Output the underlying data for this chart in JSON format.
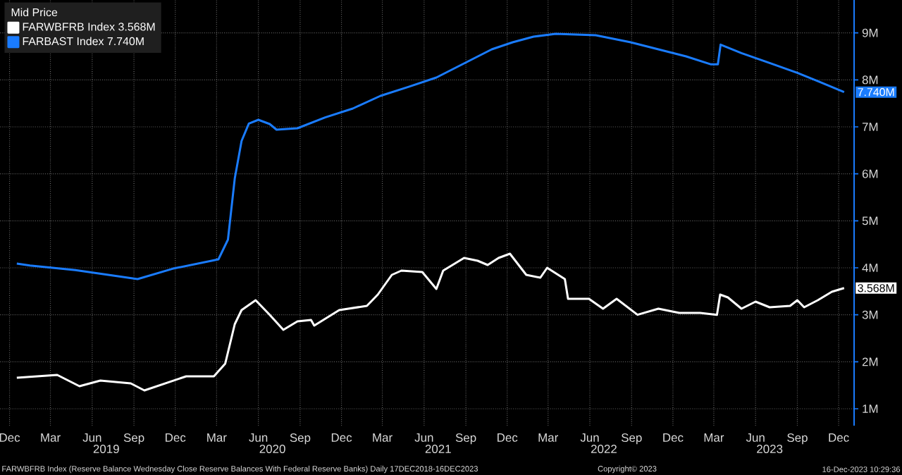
{
  "chart_data": {
    "type": "line",
    "legend_title": "Mid Price",
    "legend": "top left",
    "grid": true,
    "marker": "none",
    "line_style": "solid",
    "xlim": [
      "2018-11-10",
      "2024-01-04"
    ],
    "x2lim": [
      "2018-11-10",
      "2024-01-04"
    ],
    "x2ticks": [
      {
        "value": "2019-07-02",
        "label": "2019"
      },
      {
        "value": "2020-07-02",
        "label": "2020"
      },
      {
        "value": "2021-07-02",
        "label": "2021"
      },
      {
        "value": "2022-07-02",
        "label": "2022"
      },
      {
        "value": "2023-07-02",
        "label": "2023"
      }
    ],
    "ylim": [
      0.64,
      9.7
    ],
    "yticks": [
      {
        "value": 1,
        "label": "1M"
      },
      {
        "value": 2,
        "label": "2M"
      },
      {
        "value": 3,
        "label": "3M"
      },
      {
        "value": 4,
        "label": "4M"
      },
      {
        "value": 5,
        "label": "5M"
      },
      {
        "value": 6,
        "label": "6M"
      },
      {
        "value": 7,
        "label": "7M"
      },
      {
        "value": 8,
        "label": "8M"
      },
      {
        "value": 9,
        "label": "9M"
      }
    ],
    "xticks": [
      {
        "value": "2018-12-01",
        "label": "Dec"
      },
      {
        "value": "2019-03-01",
        "label": "Mar"
      },
      {
        "value": "2019-06-01",
        "label": "Jun"
      },
      {
        "value": "2019-09-01",
        "label": "Sep"
      },
      {
        "value": "2019-12-01",
        "label": "Dec"
      },
      {
        "value": "2020-03-01",
        "label": "Mar"
      },
      {
        "value": "2020-06-01",
        "label": "Jun"
      },
      {
        "value": "2020-09-01",
        "label": "Sep"
      },
      {
        "value": "2020-12-01",
        "label": "Dec"
      },
      {
        "value": "2021-03-01",
        "label": "Mar"
      },
      {
        "value": "2021-06-01",
        "label": "Jun"
      },
      {
        "value": "2021-09-01",
        "label": "Sep"
      },
      {
        "value": "2021-12-01",
        "label": "Dec"
      },
      {
        "value": "2022-03-01",
        "label": "Mar"
      },
      {
        "value": "2022-06-01",
        "label": "Jun"
      },
      {
        "value": "2022-09-01",
        "label": "Sep"
      },
      {
        "value": "2022-12-01",
        "label": "Dec"
      },
      {
        "value": "2023-03-01",
        "label": "Mar"
      },
      {
        "value": "2023-06-01",
        "label": "Jun"
      },
      {
        "value": "2023-09-01",
        "label": "Sep"
      },
      {
        "value": "2023-12-01",
        "label": "Dec"
      }
    ],
    "series": [
      {
        "name": "FARWBFRB Index 3.568M",
        "color": "#ffffff",
        "x": [
          "2018-12-17",
          "2019-03-16",
          "2019-05-04",
          "2019-06-19",
          "2019-08-25",
          "2019-09-24",
          "2019-11-09",
          "2019-12-25",
          "2020-02-24",
          "2020-03-20",
          "2020-04-10",
          "2020-04-25",
          "2020-05-26",
          "2020-06-26",
          "2020-07-26",
          "2020-08-26",
          "2020-09-25",
          "2020-10-02",
          "2020-11-26",
          "2021-01-26",
          "2021-02-19",
          "2021-03-22",
          "2021-04-12",
          "2021-05-28",
          "2021-06-28",
          "2021-07-13",
          "2021-08-28",
          "2021-09-27",
          "2021-10-19",
          "2021-11-12",
          "2021-12-07",
          "2022-01-12",
          "2022-02-12",
          "2022-02-27",
          "2022-04-07",
          "2022-04-14",
          "2022-05-30",
          "2022-06-30",
          "2022-07-30",
          "2022-09-14",
          "2022-10-30",
          "2022-12-15",
          "2023-01-30",
          "2023-03-08",
          "2023-03-15",
          "2023-04-01",
          "2023-05-01",
          "2023-06-01",
          "2023-07-02",
          "2023-08-16",
          "2023-09-01",
          "2023-09-16",
          "2023-10-16",
          "2023-11-16",
          "2023-12-13"
        ],
        "values": [
          1.66,
          1.72,
          1.48,
          1.6,
          1.54,
          1.39,
          1.54,
          1.69,
          1.69,
          1.96,
          2.8,
          3.1,
          3.31,
          3.0,
          2.68,
          2.86,
          2.89,
          2.77,
          3.1,
          3.19,
          3.43,
          3.85,
          3.94,
          3.91,
          3.55,
          3.94,
          4.21,
          4.15,
          4.06,
          4.21,
          4.3,
          3.85,
          3.79,
          4.0,
          3.76,
          3.34,
          3.34,
          3.13,
          3.34,
          3.0,
          3.13,
          3.04,
          3.04,
          3.0,
          3.43,
          3.37,
          3.13,
          3.28,
          3.16,
          3.19,
          3.31,
          3.16,
          3.31,
          3.49,
          3.568
        ]
      },
      {
        "name": "FARBAST Index 7.740M",
        "color": "#1a7cff",
        "x": [
          "2018-12-17",
          "2019-01-15",
          "2019-04-25",
          "2019-09-09",
          "2019-11-25",
          "2020-03-05",
          "2020-03-26",
          "2020-04-10",
          "2020-04-25",
          "2020-05-11",
          "2020-06-01",
          "2020-06-26",
          "2020-07-11",
          "2020-08-26",
          "2020-10-26",
          "2020-12-26",
          "2021-02-25",
          "2021-04-27",
          "2021-06-28",
          "2021-08-28",
          "2021-10-28",
          "2021-12-13",
          "2022-01-28",
          "2022-03-18",
          "2022-06-14",
          "2022-08-30",
          "2022-10-30",
          "2022-12-30",
          "2023-02-23",
          "2023-03-10",
          "2023-03-16",
          "2023-05-01",
          "2023-07-02",
          "2023-09-01",
          "2023-10-17",
          "2023-12-13"
        ],
        "values": [
          4.09,
          4.05,
          3.95,
          3.76,
          3.98,
          4.18,
          4.6,
          5.9,
          6.7,
          7.07,
          7.15,
          7.06,
          6.94,
          6.97,
          7.2,
          7.39,
          7.66,
          7.85,
          8.05,
          8.35,
          8.65,
          8.8,
          8.92,
          8.98,
          8.95,
          8.8,
          8.65,
          8.5,
          8.33,
          8.33,
          8.75,
          8.57,
          8.36,
          8.15,
          7.97,
          7.74
        ]
      }
    ],
    "annotations": [
      {
        "text": "7.740M",
        "x": "2023-12-13",
        "y": 7.74
      },
      {
        "text": "3.568M",
        "x": "2023-12-13",
        "y": 3.568
      },
      "FARWBFRB Index (Reserve Balance Wednesday Close Reserve Balances With Federal Reserve Banks) Daily 17DEC2018-16DEC2023",
      "Copyright© 2023",
      "16-Dec-2023 10:29:36"
    ]
  }
}
